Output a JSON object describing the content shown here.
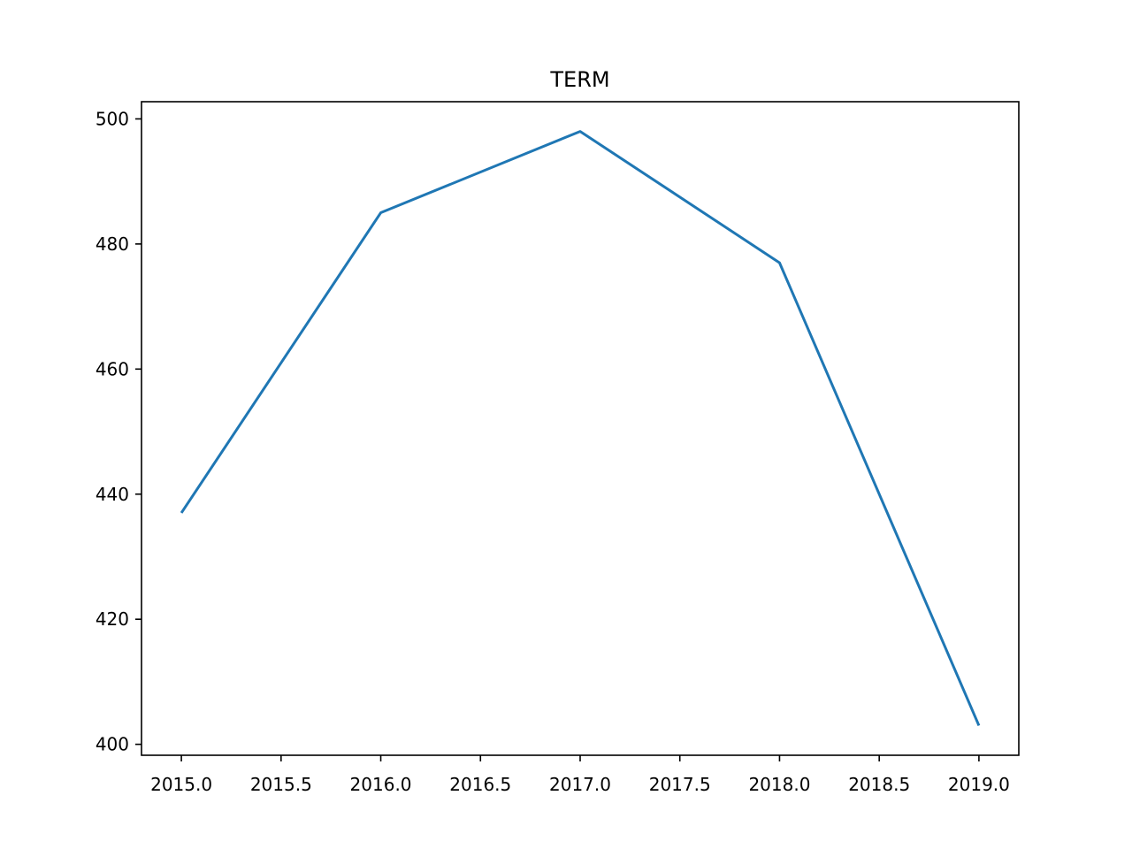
{
  "chart_data": {
    "type": "line",
    "title": "TERM",
    "xlabel": "",
    "ylabel": "",
    "x": [
      2015,
      2016,
      2017,
      2018,
      2019
    ],
    "series": [
      {
        "values": [
          437,
          485,
          498,
          477,
          403
        ],
        "color": "#1f77b4"
      }
    ],
    "xlim": [
      2014.8,
      2019.2
    ],
    "ylim": [
      398.25,
      502.75
    ],
    "xticks": [
      "2015.0",
      "2015.5",
      "2016.0",
      "2016.5",
      "2017.0",
      "2017.5",
      "2018.0",
      "2018.5",
      "2019.0"
    ],
    "yticks": [
      "400",
      "420",
      "440",
      "460",
      "480",
      "500"
    ],
    "grid": false,
    "legend": "none"
  }
}
